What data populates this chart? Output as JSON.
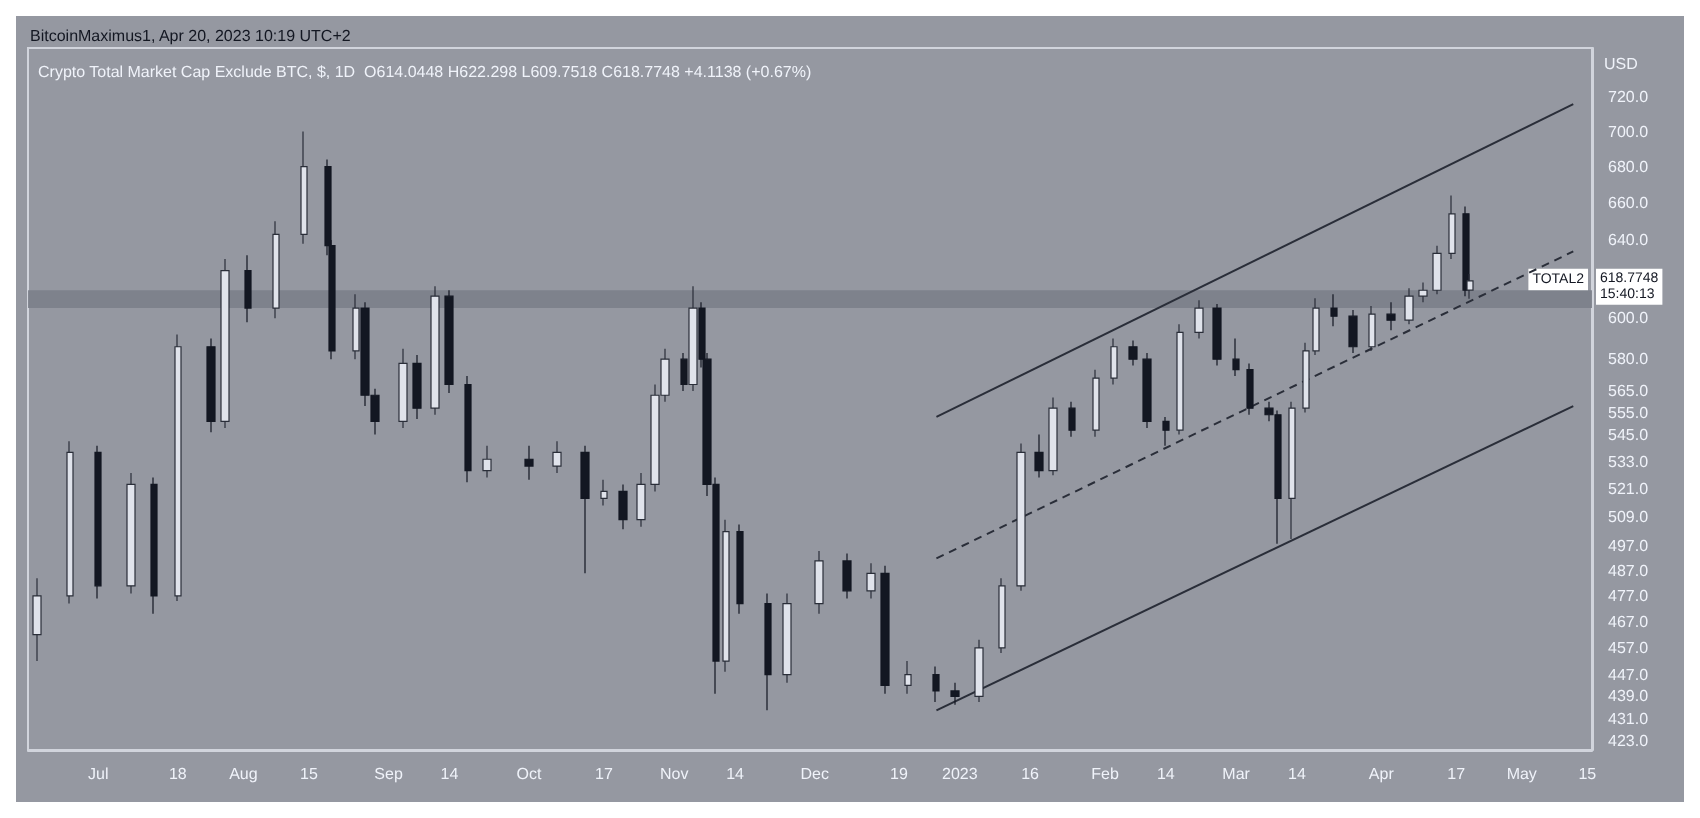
{
  "chart_data": {
    "type": "candlestick",
    "title": "Crypto Total Market Cap Exclude BTC, $, 1D  O614.0448 H622.298 L609.7518 C618.7748 +4.1138 (+0.67%)",
    "subtitle": "BitcoinMaximus1, Apr 20, 2023 10:19 UTC+2",
    "ylabel": "USD",
    "x": [
      "2022-06-18",
      "2022-06-25",
      "2022-07-01",
      "2022-07-08",
      "2022-07-13",
      "2022-07-18",
      "2022-07-25",
      "2022-07-28",
      "2022-08-02",
      "2022-08-08",
      "2022-08-14",
      "2022-08-19",
      "2022-08-20",
      "2022-08-25",
      "2022-08-27",
      "2022-08-29",
      "2022-09-04",
      "2022-09-07",
      "2022-09-11",
      "2022-09-14",
      "2022-09-18",
      "2022-09-22",
      "2022-10-01",
      "2022-10-07",
      "2022-10-13",
      "2022-10-17",
      "2022-10-21",
      "2022-10-25",
      "2022-10-28",
      "2022-10-30",
      "2022-11-03",
      "2022-11-05",
      "2022-11-07",
      "2022-11-08",
      "2022-11-10",
      "2022-11-12",
      "2022-11-15",
      "2022-11-21",
      "2022-11-25",
      "2022-12-02",
      "2022-12-08",
      "2022-12-13",
      "2022-12-16",
      "2022-12-21",
      "2022-12-27",
      "2022-12-31",
      "2023-01-05",
      "2023-01-10",
      "2023-01-14",
      "2023-01-18",
      "2023-01-21",
      "2023-01-25",
      "2023-01-30",
      "2023-02-03",
      "2023-02-07",
      "2023-02-10",
      "2023-02-14",
      "2023-02-17",
      "2023-02-21",
      "2023-02-25",
      "2023-03-01",
      "2023-03-04",
      "2023-03-08",
      "2023-03-10",
      "2023-03-13",
      "2023-03-16",
      "2023-03-18",
      "2023-03-22",
      "2023-03-26",
      "2023-03-30",
      "2023-04-03",
      "2023-04-07",
      "2023-04-10",
      "2023-04-13",
      "2023-04-16",
      "2023-04-19",
      "2023-04-20"
    ],
    "ohlc": [
      [
        462,
        484,
        452,
        477
      ],
      [
        477,
        542,
        474,
        537
      ],
      [
        537,
        540,
        476,
        481
      ],
      [
        481,
        528,
        478,
        523
      ],
      [
        523,
        526,
        470,
        477
      ],
      [
        477,
        592,
        475,
        586
      ],
      [
        586,
        590,
        546,
        551
      ],
      [
        551,
        630,
        548,
        624
      ],
      [
        624,
        632,
        598,
        605
      ],
      [
        605,
        650,
        600,
        643
      ],
      [
        643,
        700,
        638,
        680
      ],
      [
        680,
        684,
        632,
        637
      ],
      [
        637,
        640,
        580,
        584
      ],
      [
        584,
        612,
        580,
        605
      ],
      [
        605,
        608,
        558,
        563
      ],
      [
        563,
        566,
        545,
        551
      ],
      [
        551,
        585,
        548,
        578
      ],
      [
        578,
        582,
        552,
        557
      ],
      [
        557,
        616,
        554,
        611
      ],
      [
        611,
        614,
        564,
        568
      ],
      [
        568,
        572,
        524,
        529
      ],
      [
        529,
        540,
        526,
        534
      ],
      [
        534,
        540,
        525,
        531
      ],
      [
        531,
        542,
        528,
        537
      ],
      [
        537,
        540,
        486,
        517
      ],
      [
        517,
        525,
        514,
        520
      ],
      [
        520,
        523,
        504,
        508
      ],
      [
        508,
        528,
        505,
        523
      ],
      [
        523,
        568,
        520,
        563
      ],
      [
        563,
        585,
        560,
        580
      ],
      [
        580,
        583,
        565,
        568
      ],
      [
        568,
        616,
        565,
        605
      ],
      [
        605,
        608,
        576,
        580
      ],
      [
        580,
        583,
        518,
        523
      ],
      [
        523,
        526,
        440,
        452
      ],
      [
        452,
        508,
        448,
        503
      ],
      [
        503,
        506,
        470,
        474
      ],
      [
        474,
        478,
        434,
        447
      ],
      [
        447,
        478,
        444,
        474
      ],
      [
        474,
        495,
        470,
        491
      ],
      [
        491,
        494,
        476,
        479
      ],
      [
        479,
        490,
        476,
        486
      ],
      [
        486,
        489,
        440,
        443
      ],
      [
        443,
        452,
        440,
        447
      ],
      [
        447,
        450,
        437,
        441
      ],
      [
        441,
        444,
        436,
        439
      ],
      [
        439,
        460,
        437,
        457
      ],
      [
        457,
        484,
        455,
        481
      ],
      [
        481,
        541,
        479,
        537
      ],
      [
        537,
        545,
        526,
        529
      ],
      [
        529,
        562,
        527,
        557
      ],
      [
        557,
        560,
        544,
        547
      ],
      [
        547,
        575,
        544,
        571
      ],
      [
        571,
        590,
        568,
        586
      ],
      [
        586,
        589,
        577,
        580
      ],
      [
        580,
        583,
        548,
        551
      ],
      [
        551,
        553,
        540,
        547
      ],
      [
        547,
        597,
        545,
        593
      ],
      [
        593,
        609,
        590,
        605
      ],
      [
        605,
        607,
        577,
        580
      ],
      [
        580,
        590,
        572,
        575
      ],
      [
        575,
        578,
        554,
        557
      ],
      [
        557,
        560,
        551,
        554
      ],
      [
        554,
        556,
        498,
        517
      ],
      [
        517,
        560,
        500,
        557
      ],
      [
        557,
        588,
        555,
        584
      ],
      [
        584,
        610,
        582,
        605
      ],
      [
        605,
        612,
        596,
        601
      ],
      [
        601,
        604,
        583,
        586
      ],
      [
        586,
        606,
        584,
        602
      ],
      [
        602,
        608,
        594,
        599
      ],
      [
        599,
        615,
        597,
        611
      ],
      [
        611,
        618,
        608,
        614
      ],
      [
        614,
        637,
        612,
        633
      ],
      [
        633,
        664,
        630,
        654
      ],
      [
        654,
        658,
        611,
        614
      ],
      [
        614.0448,
        622.298,
        609.7518,
        618.7748
      ]
    ],
    "series": [
      {
        "type": "line",
        "color": "#2a2e39",
        "line_style": "solid",
        "x": [
          "2022-12-27",
          "2023-05-12"
        ],
        "values": [
          553,
          716
        ]
      },
      {
        "type": "line",
        "color": "#2a2e39",
        "line_style": "dashed",
        "x": [
          "2022-12-27",
          "2023-05-12"
        ],
        "values": [
          492,
          634
        ]
      },
      {
        "type": "line",
        "color": "#2a2e39",
        "line_style": "solid",
        "x": [
          "2022-12-27",
          "2023-05-12"
        ],
        "values": [
          434,
          558
        ]
      }
    ],
    "bands": [
      {
        "axis": "y",
        "from": 605,
        "to": 614,
        "color": "#7b7f89"
      }
    ],
    "annotations": [
      "TOTAL2",
      "618.7748",
      "15:40:13"
    ],
    "log": true,
    "grid": false,
    "marker": "none",
    "xlim": [
      "2022-06-16",
      "2023-05-16"
    ],
    "xticks": [
      {
        "value": "2022-07-01",
        "label": "Jul"
      },
      {
        "value": "2022-07-18",
        "label": "18"
      },
      {
        "value": "2022-08-01",
        "label": "Aug"
      },
      {
        "value": "2022-08-15",
        "label": "15"
      },
      {
        "value": "2022-09-01",
        "label": "Sep"
      },
      {
        "value": "2022-09-14",
        "label": "14"
      },
      {
        "value": "2022-10-01",
        "label": "Oct"
      },
      {
        "value": "2022-10-17",
        "label": "17"
      },
      {
        "value": "2022-11-01",
        "label": "Nov"
      },
      {
        "value": "2022-11-14",
        "label": "14"
      },
      {
        "value": "2022-12-01",
        "label": "Dec"
      },
      {
        "value": "2022-12-19",
        "label": "19"
      },
      {
        "value": "2023-01-01",
        "label": "2023"
      },
      {
        "value": "2023-01-16",
        "label": "16"
      },
      {
        "value": "2023-02-01",
        "label": "Feb"
      },
      {
        "value": "2023-02-14",
        "label": "14"
      },
      {
        "value": "2023-03-01",
        "label": "Mar"
      },
      {
        "value": "2023-03-14",
        "label": "14"
      },
      {
        "value": "2023-04-01",
        "label": "Apr"
      },
      {
        "value": "2023-04-17",
        "label": "17"
      },
      {
        "value": "2023-05-01",
        "label": "May"
      },
      {
        "value": "2023-05-15",
        "label": "15"
      }
    ],
    "ylim": [
      420,
      750
    ],
    "yticks": [
      {
        "value": 720,
        "label": "720.0"
      },
      {
        "value": 700,
        "label": "700.0"
      },
      {
        "value": 680,
        "label": "680.0"
      },
      {
        "value": 660,
        "label": "660.0"
      },
      {
        "value": 640,
        "label": "640.0"
      },
      {
        "value": 600,
        "label": "600.0"
      },
      {
        "value": 580,
        "label": "580.0"
      },
      {
        "value": 565,
        "label": "565.0"
      },
      {
        "value": 555,
        "label": "555.0"
      },
      {
        "value": 545,
        "label": "545.0"
      },
      {
        "value": 533,
        "label": "533.0"
      },
      {
        "value": 521,
        "label": "521.0"
      },
      {
        "value": 509,
        "label": "509.0"
      },
      {
        "value": 497,
        "label": "497.0"
      },
      {
        "value": 487,
        "label": "487.0"
      },
      {
        "value": 477,
        "label": "477.0"
      },
      {
        "value": 467,
        "label": "467.0"
      },
      {
        "value": 457,
        "label": "457.0"
      },
      {
        "value": 447,
        "label": "447.0"
      },
      {
        "value": 439,
        "label": "439.0"
      },
      {
        "value": 431,
        "label": "431.0"
      },
      {
        "value": 423,
        "label": "423.0"
      }
    ]
  }
}
